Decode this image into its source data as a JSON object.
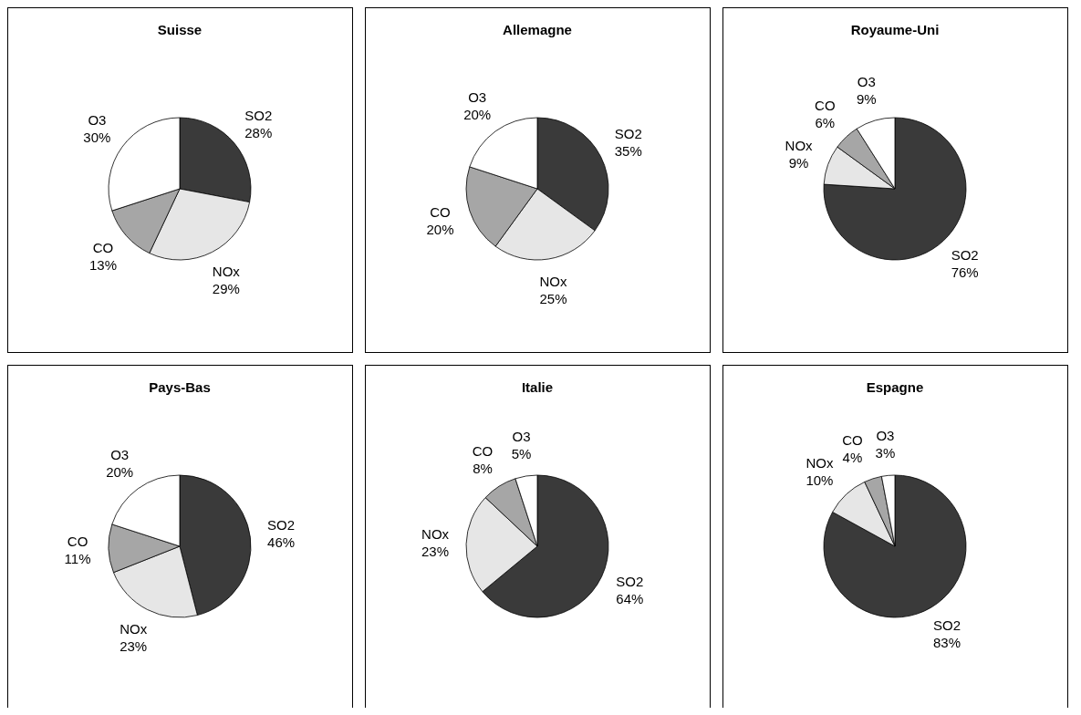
{
  "chart_data": [
    {
      "type": "pie",
      "title": "Suisse",
      "categories": [
        "SO2",
        "NOx",
        "CO",
        "O3"
      ],
      "values": [
        28,
        29,
        13,
        30
      ],
      "colors": [
        "#3a3a3a",
        "#e6e6e6",
        "#a6a6a6",
        "#ffffff"
      ],
      "value_labels": [
        "28%",
        "29%",
        "13%",
        "30%"
      ]
    },
    {
      "type": "pie",
      "title": "Allemagne",
      "categories": [
        "SO2",
        "NOx",
        "CO",
        "O3"
      ],
      "values": [
        35,
        25,
        20,
        20
      ],
      "colors": [
        "#3a3a3a",
        "#e6e6e6",
        "#a6a6a6",
        "#ffffff"
      ],
      "value_labels": [
        "35%",
        "25%",
        "20%",
        "20%"
      ]
    },
    {
      "type": "pie",
      "title": "Royaume-Uni",
      "categories": [
        "SO2",
        "NOx",
        "CO",
        "O3"
      ],
      "values": [
        76,
        9,
        6,
        9
      ],
      "colors": [
        "#3a3a3a",
        "#e6e6e6",
        "#a6a6a6",
        "#ffffff"
      ],
      "value_labels": [
        "76%",
        "9%",
        "6%",
        "9%"
      ]
    },
    {
      "type": "pie",
      "title": "Pays-Bas",
      "categories": [
        "SO2",
        "NOx",
        "CO",
        "O3"
      ],
      "values": [
        46,
        23,
        11,
        20
      ],
      "colors": [
        "#3a3a3a",
        "#e6e6e6",
        "#a6a6a6",
        "#ffffff"
      ],
      "value_labels": [
        "46%",
        "23%",
        "11%",
        "20%"
      ]
    },
    {
      "type": "pie",
      "title": "Italie",
      "categories": [
        "SO2",
        "NOx",
        "CO",
        "O3"
      ],
      "values": [
        64,
        23,
        8,
        5
      ],
      "colors": [
        "#3a3a3a",
        "#e6e6e6",
        "#a6a6a6",
        "#ffffff"
      ],
      "value_labels": [
        "64%",
        "23%",
        "8%",
        "5%"
      ]
    },
    {
      "type": "pie",
      "title": "Espagne",
      "categories": [
        "SO2",
        "NOx",
        "CO",
        "O3"
      ],
      "values": [
        83,
        10,
        4,
        3
      ],
      "colors": [
        "#3a3a3a",
        "#e6e6e6",
        "#a6a6a6",
        "#ffffff"
      ],
      "value_labels": [
        "83%",
        "10%",
        "4%",
        "3%"
      ]
    }
  ]
}
